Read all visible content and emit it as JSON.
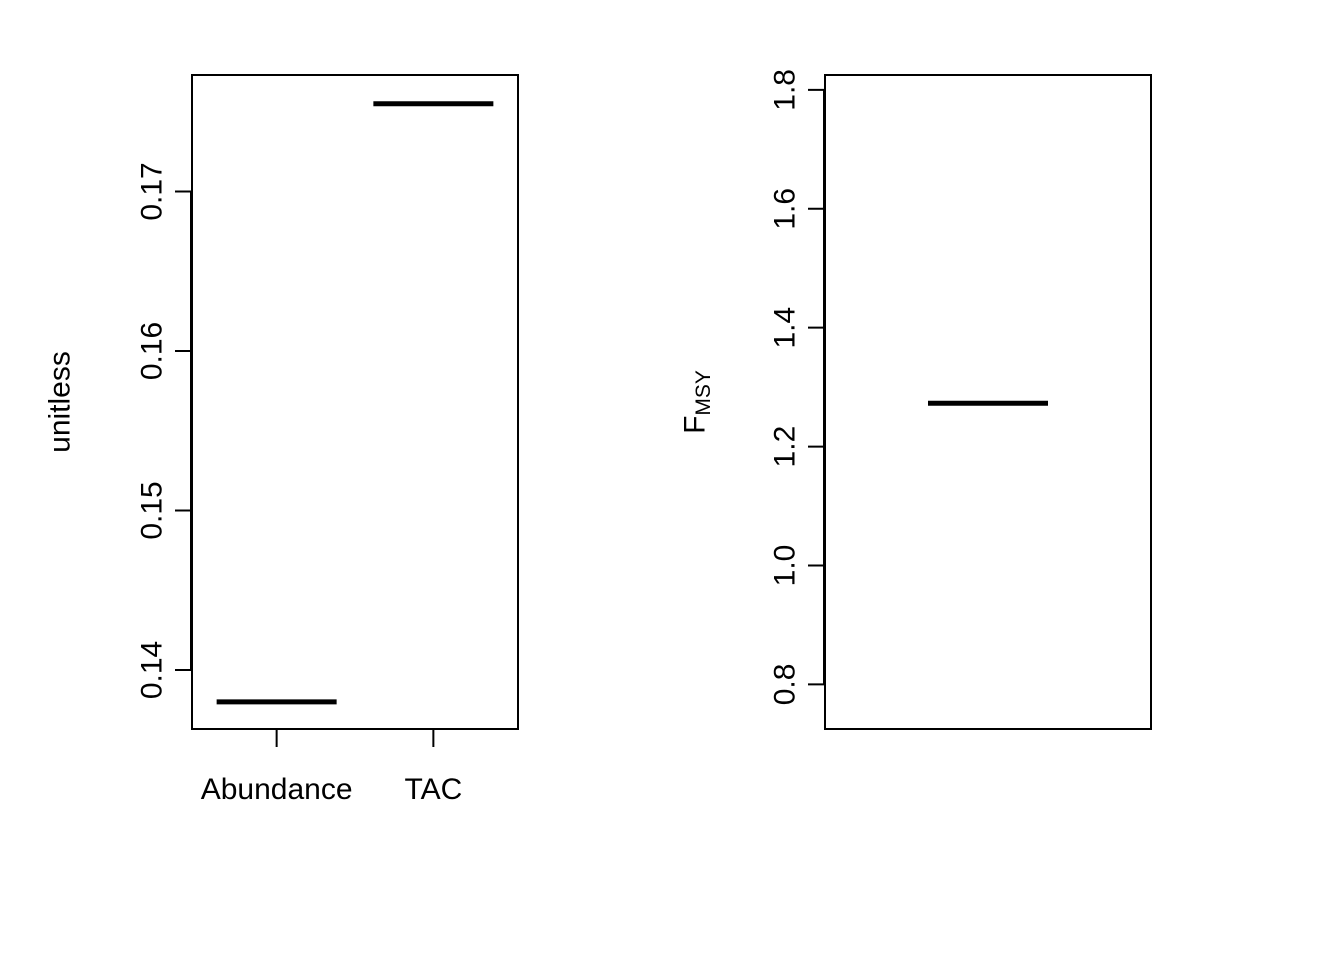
{
  "colors": {
    "background": "#ffffff",
    "ink": "#000000"
  },
  "chart_data": [
    {
      "type": "box",
      "title": "",
      "xlabel": "",
      "ylabel": "unitless",
      "categories": [
        "Abundance",
        "TAC"
      ],
      "values": [
        0.138,
        0.1755
      ],
      "ylim": [
        0.1363,
        0.1773
      ],
      "yticks": [
        0.14,
        0.15,
        0.16,
        0.17
      ],
      "ytick_labels": [
        "0.14",
        "0.15",
        "0.16",
        "0.17"
      ],
      "grid": false,
      "legend": "none"
    },
    {
      "type": "box",
      "title": "",
      "xlabel": "",
      "ylabel": "F",
      "ylabel_subscript": "MSY",
      "categories": [
        ""
      ],
      "values": [
        1.273
      ],
      "ylim": [
        0.725,
        1.825
      ],
      "yticks": [
        0.8,
        1.0,
        1.2,
        1.4,
        1.6,
        1.8
      ],
      "ytick_labels": [
        "0.8",
        "1.0",
        "1.2",
        "1.4",
        "1.6",
        "1.8"
      ],
      "grid": false,
      "legend": "none"
    }
  ]
}
